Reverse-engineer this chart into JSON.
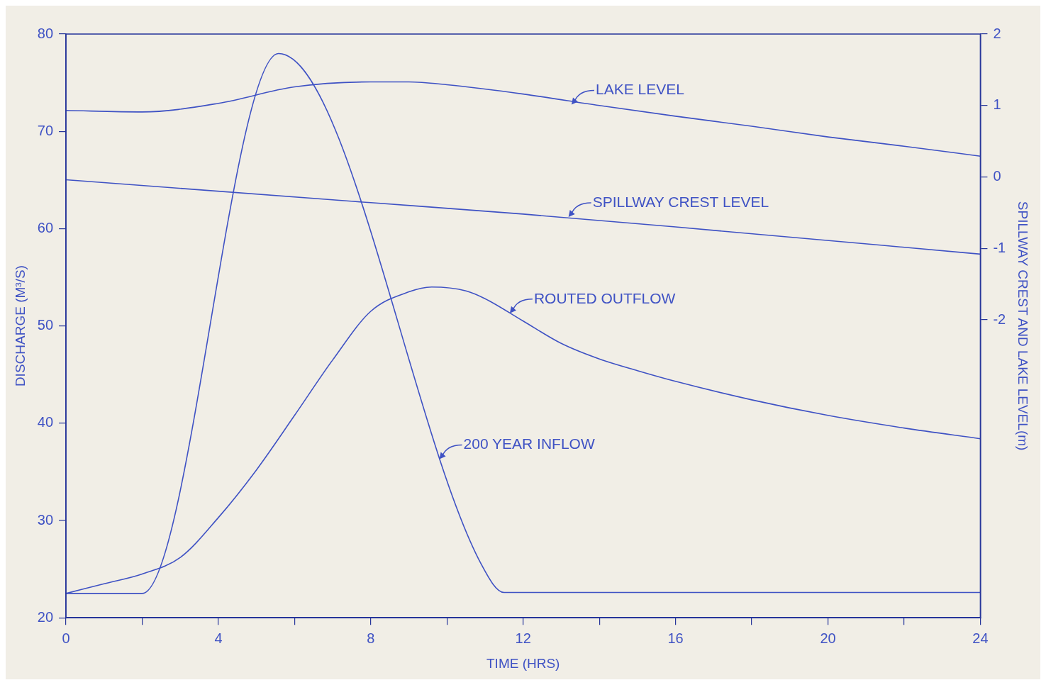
{
  "chart_data": {
    "type": "line",
    "xlabel": "TIME (HRS)",
    "ylabel": "DISCHARGE (M³/S)",
    "y2label": "SPILLWAY CREST AND LAKE LEVEL(m)",
    "xlim": [
      0,
      24
    ],
    "xticks": [
      0,
      {
        "value": 2,
        "label": null
      },
      4,
      {
        "value": 6,
        "label": null
      },
      8,
      {
        "value": 10,
        "label": null
      },
      12,
      {
        "value": 14,
        "label": null
      },
      16,
      {
        "value": 18,
        "label": null
      },
      20,
      {
        "value": 22,
        "label": null
      },
      24
    ],
    "ylim": [
      20,
      80
    ],
    "yticks": [
      20,
      30,
      40,
      50,
      60,
      70,
      80
    ],
    "y2lim": [
      -6.17,
      2
    ],
    "y2ticks": [
      -2,
      -1,
      0,
      1,
      2
    ],
    "grid": false,
    "legend": false,
    "marker": "none",
    "line_style": "solid",
    "series": [
      {
        "color": "#3f52c4",
        "x": [
          0,
          2,
          5.58,
          10.9,
          11.5,
          24
        ],
        "values": [
          22.5,
          22.5,
          78,
          25.5,
          22.6,
          22.6
        ]
      },
      {
        "color": "#3f52c4",
        "x": [
          0,
          1,
          2,
          3,
          4,
          5,
          6,
          7,
          8,
          9,
          9.6,
          10.5,
          11,
          12,
          13,
          14,
          15,
          16,
          18,
          20,
          22,
          24
        ],
        "values": [
          22.5,
          23.5,
          24.5,
          26.2,
          30.3,
          35.2,
          40.8,
          46.5,
          51.5,
          53.5,
          54,
          53.6,
          52.8,
          50.5,
          48.2,
          46.6,
          45.4,
          44.3,
          42.4,
          40.8,
          39.5,
          38.4
        ]
      },
      {
        "color": "#3f52c4",
        "axis": "y2",
        "x": [
          0,
          2,
          4,
          6,
          8,
          9,
          10,
          12,
          14,
          16,
          18,
          20,
          22,
          24
        ],
        "values": [
          0.93,
          0.91,
          1.03,
          1.26,
          1.33,
          1.33,
          1.29,
          1.16,
          1.0,
          0.85,
          0.71,
          0.56,
          0.43,
          0.29
        ]
      },
      {
        "color": "#3f52c4",
        "axis": "y2",
        "x": [
          0,
          8,
          12,
          16,
          24
        ],
        "values": [
          -0.04,
          -0.36,
          -0.52,
          -0.7,
          -1.08
        ]
      }
    ],
    "annotations": [
      {
        "text": "LAKE LEVEL",
        "x": 13.27,
        "y": 72.75
      },
      {
        "text": "SPILLWAY CREST LEVEL",
        "x": 13.19,
        "y": 61.2
      },
      {
        "text": "ROUTED OUTFLOW",
        "x": 11.65,
        "y": 51.3
      },
      {
        "text": "200 YEAR INFLOW",
        "x": 9.8,
        "y": 36.3
      }
    ]
  }
}
